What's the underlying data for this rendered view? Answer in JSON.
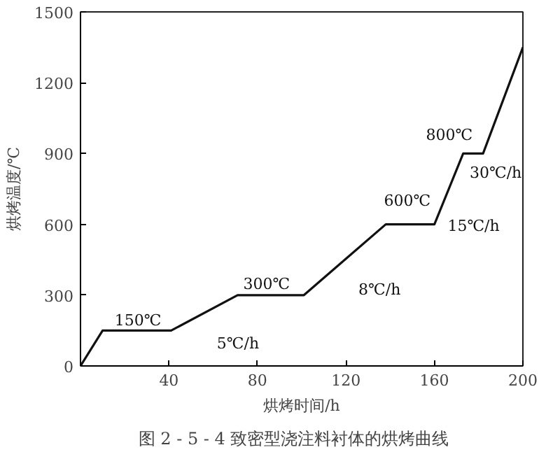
{
  "chart_data": {
    "type": "line",
    "xlabel": "烘烤时间/h",
    "ylabel": "烘烤温度/℃",
    "x": [
      0,
      10,
      41,
      71,
      101,
      138,
      160,
      173,
      182,
      200
    ],
    "values": [
      0,
      150,
      150,
      300,
      300,
      600,
      600,
      900,
      900,
      1350
    ],
    "color": "#111111",
    "xlim": [
      0,
      200
    ],
    "ylim": [
      0,
      1500
    ],
    "xticks": [
      40,
      80,
      120,
      160,
      200
    ],
    "yticks": [
      0,
      300,
      600,
      900,
      1200,
      1500
    ],
    "grid": false,
    "marker": "none",
    "line_style": "solid",
    "annotations": [
      {
        "text": "150℃",
        "x": 26,
        "y": 150
      },
      {
        "text": "5℃/h",
        "x": 56,
        "y": 225
      },
      {
        "text": "300℃",
        "x": 86,
        "y": 300
      },
      {
        "text": "8℃/h",
        "x": 120,
        "y": 454
      },
      {
        "text": "600℃",
        "x": 149,
        "y": 600
      },
      {
        "text": "15℃/h",
        "x": 160,
        "y": 600
      },
      {
        "text": "800℃",
        "x": 177.5,
        "y": 900
      },
      {
        "text": "30℃/h",
        "x": 182,
        "y": 900
      },
      "图 2 - 5 - 4    致密型浇注料衬体的烘烤曲线"
    ]
  }
}
